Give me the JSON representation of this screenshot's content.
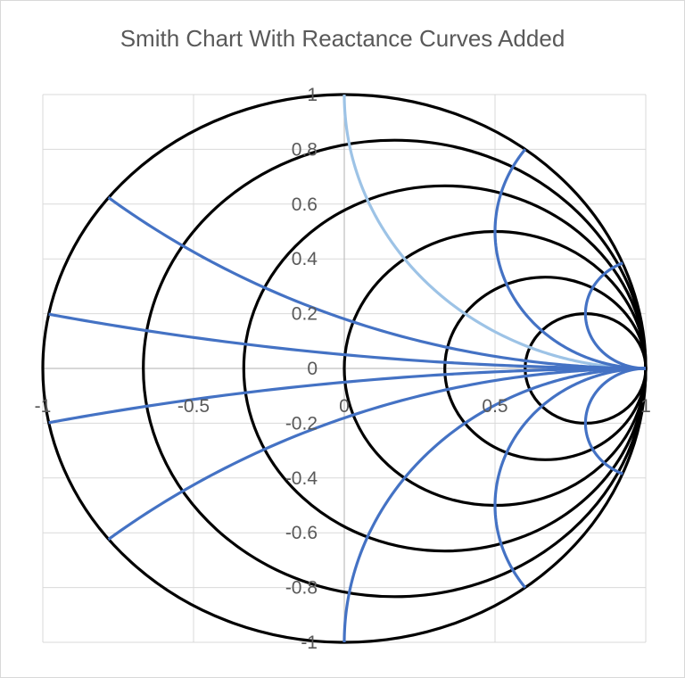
{
  "chart_data": {
    "type": "scatter",
    "title": "Smith Chart With Reactance Curves Added",
    "xlim": [
      -1,
      1
    ],
    "ylim": [
      -1,
      1
    ],
    "x_ticks": [
      -1,
      -0.5,
      0,
      0.5,
      1
    ],
    "y_ticks": [
      1,
      0.8,
      0.6,
      0.4,
      0.2,
      0,
      -0.2,
      -0.4,
      -0.6,
      -0.8,
      -1
    ],
    "grid": true,
    "legend": "none",
    "resistance_circles": [
      {
        "r": 0,
        "center_x": 0,
        "radius": 1
      },
      {
        "r": 0.2,
        "center_x": 0.1667,
        "radius": 0.8333
      },
      {
        "r": 0.5,
        "center_x": 0.3333,
        "radius": 0.6667
      },
      {
        "r": 1,
        "center_x": 0.5,
        "radius": 0.5
      },
      {
        "r": 2,
        "center_x": 0.6667,
        "radius": 0.3333
      },
      {
        "r": 4,
        "center_x": 0.8,
        "radius": 0.2
      }
    ],
    "reactance_curves": [
      {
        "x": 1,
        "color": "#9dc3e6"
      },
      {
        "x": -1,
        "color": "#4472c4"
      },
      {
        "x": 2,
        "color": "#4472c4"
      },
      {
        "x": -2,
        "color": "#4472c4"
      },
      {
        "x": 5,
        "color": "#4472c4"
      },
      {
        "x": -5,
        "color": "#4472c4"
      },
      {
        "x": 0.35,
        "color": "#4472c4"
      },
      {
        "x": -0.35,
        "color": "#4472c4"
      },
      {
        "x": 0.1,
        "color": "#4472c4"
      },
      {
        "x": -0.1,
        "color": "#4472c4"
      }
    ],
    "colors": {
      "circle": "#000000",
      "grid": "#d9d9d9",
      "axis": "#bfbfbf"
    }
  }
}
